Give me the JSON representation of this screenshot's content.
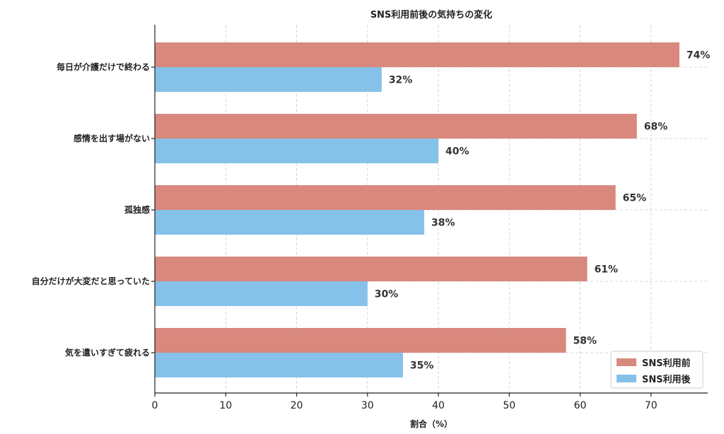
{
  "chart_data": {
    "type": "bar",
    "orientation": "horizontal",
    "title": "SNS利用前後の気持ちの変化",
    "xlabel": "割合（%）",
    "ylabel": "",
    "xlim": [
      0,
      78
    ],
    "xticks": [
      0,
      10,
      20,
      30,
      40,
      50,
      60,
      70
    ],
    "grid": true,
    "legend_position": "bottom-right",
    "categories": [
      "毎日が介護だけで終わる",
      "感情を出す場がない",
      "孤独感",
      "自分だけが大変だと思っていた",
      "気を遣いすぎて疲れる"
    ],
    "series": [
      {
        "name": "SNS利用前",
        "color": "#d9887e",
        "values": [
          74,
          68,
          65,
          61,
          58
        ],
        "labels": [
          "74%",
          "68%",
          "65%",
          "61%",
          "58%"
        ]
      },
      {
        "name": "SNS利用後",
        "color": "#86c1e9",
        "values": [
          32,
          40,
          38,
          30,
          35
        ],
        "labels": [
          "32%",
          "40%",
          "38%",
          "30%",
          "35%"
        ]
      }
    ]
  }
}
